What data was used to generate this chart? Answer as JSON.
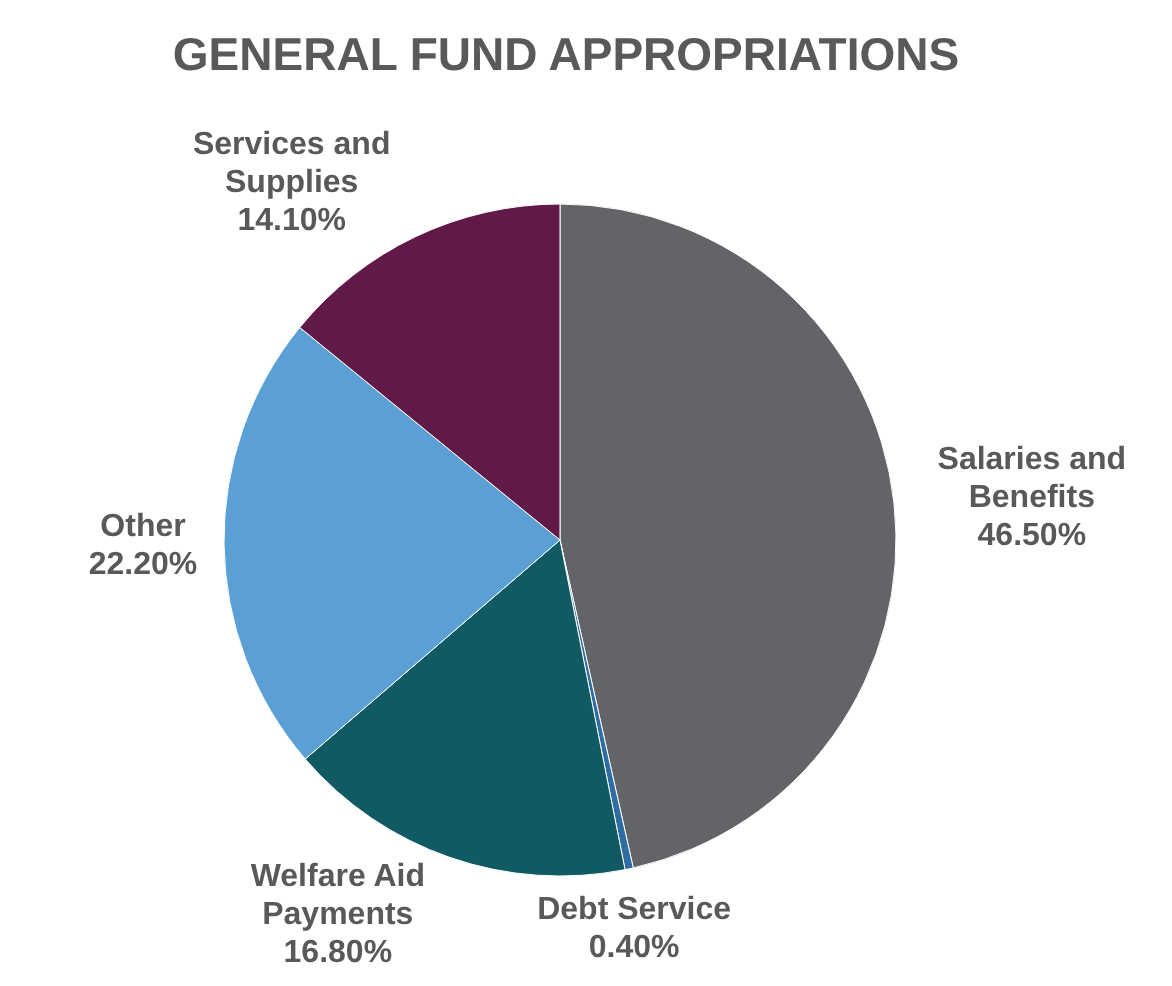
{
  "chart_data": {
    "type": "pie",
    "title": "GENERAL FUND APPROPRIATIONS",
    "categories": [
      "Salaries and Benefits",
      "Debt Service",
      "Welfare Aid Payments",
      "Other",
      "Services and Supplies"
    ],
    "values": [
      46.5,
      0.4,
      16.8,
      22.2,
      14.1
    ],
    "value_labels": [
      "46.50%",
      "0.40%",
      "16.80%",
      "22.20%",
      "14.10%"
    ],
    "colors": [
      "#636467",
      "#2e6da4",
      "#0f5a63",
      "#5aa0d4",
      "#611a47"
    ]
  }
}
